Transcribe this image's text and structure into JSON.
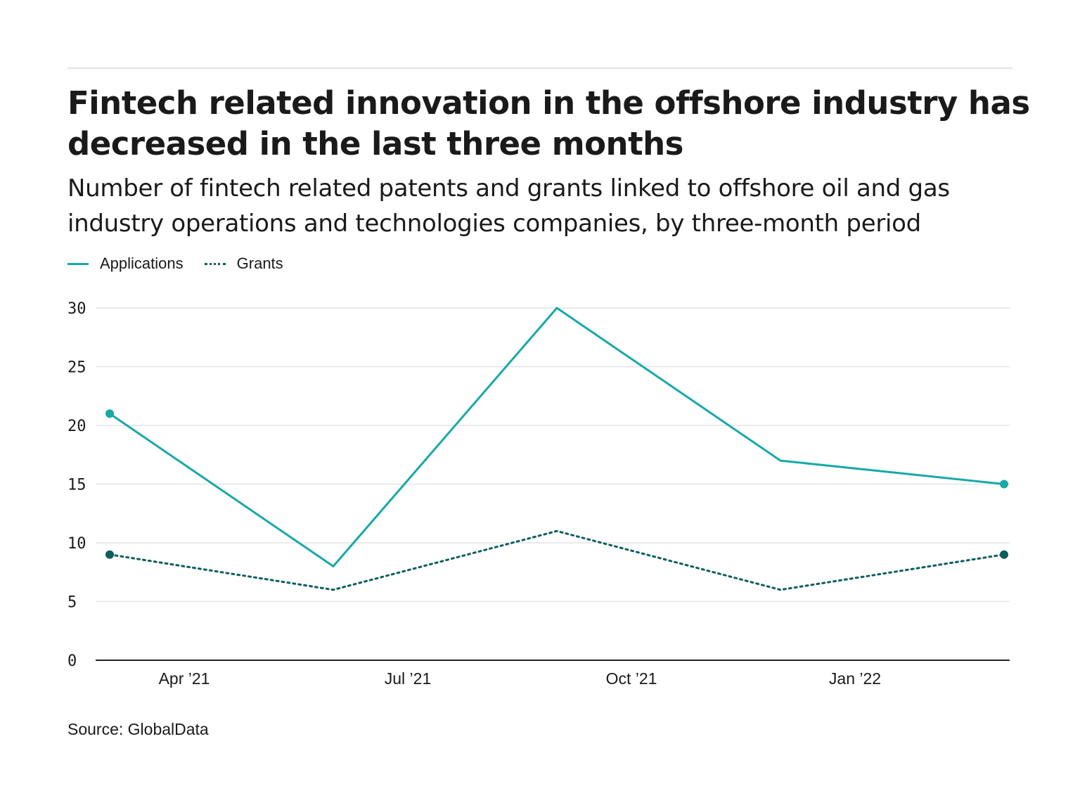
{
  "title": "Fintech related innovation in the offshore industry has decreased in the last three months",
  "subtitle": "Number of fintech related patents and grants linked to offshore oil and gas industry operations and technologies companies, by three-month period",
  "source": "Source: GlobalData",
  "chart_data": {
    "type": "line",
    "x": [
      "2021-03",
      "2021-06",
      "2021-09",
      "2021-12",
      "2022-03"
    ],
    "x_tick_labels": [
      "Apr ’21",
      "Jul ’21",
      "Oct ’21",
      "Jan ’22"
    ],
    "x_tick_dates": [
      "2021-04",
      "2021-07",
      "2021-10",
      "2022-01"
    ],
    "y_ticks": [
      0,
      5,
      10,
      15,
      20,
      25,
      30
    ],
    "ylim": [
      0,
      30
    ],
    "grid": true,
    "legend_placement": "top-left",
    "series": [
      {
        "name": "Applications",
        "values": [
          21,
          8,
          30,
          17,
          15
        ],
        "color": "#17a9a8",
        "style": "solid"
      },
      {
        "name": "Grants",
        "values": [
          9,
          6,
          11,
          6,
          9
        ],
        "color": "#0e5e5e",
        "style": "dotted"
      }
    ]
  }
}
